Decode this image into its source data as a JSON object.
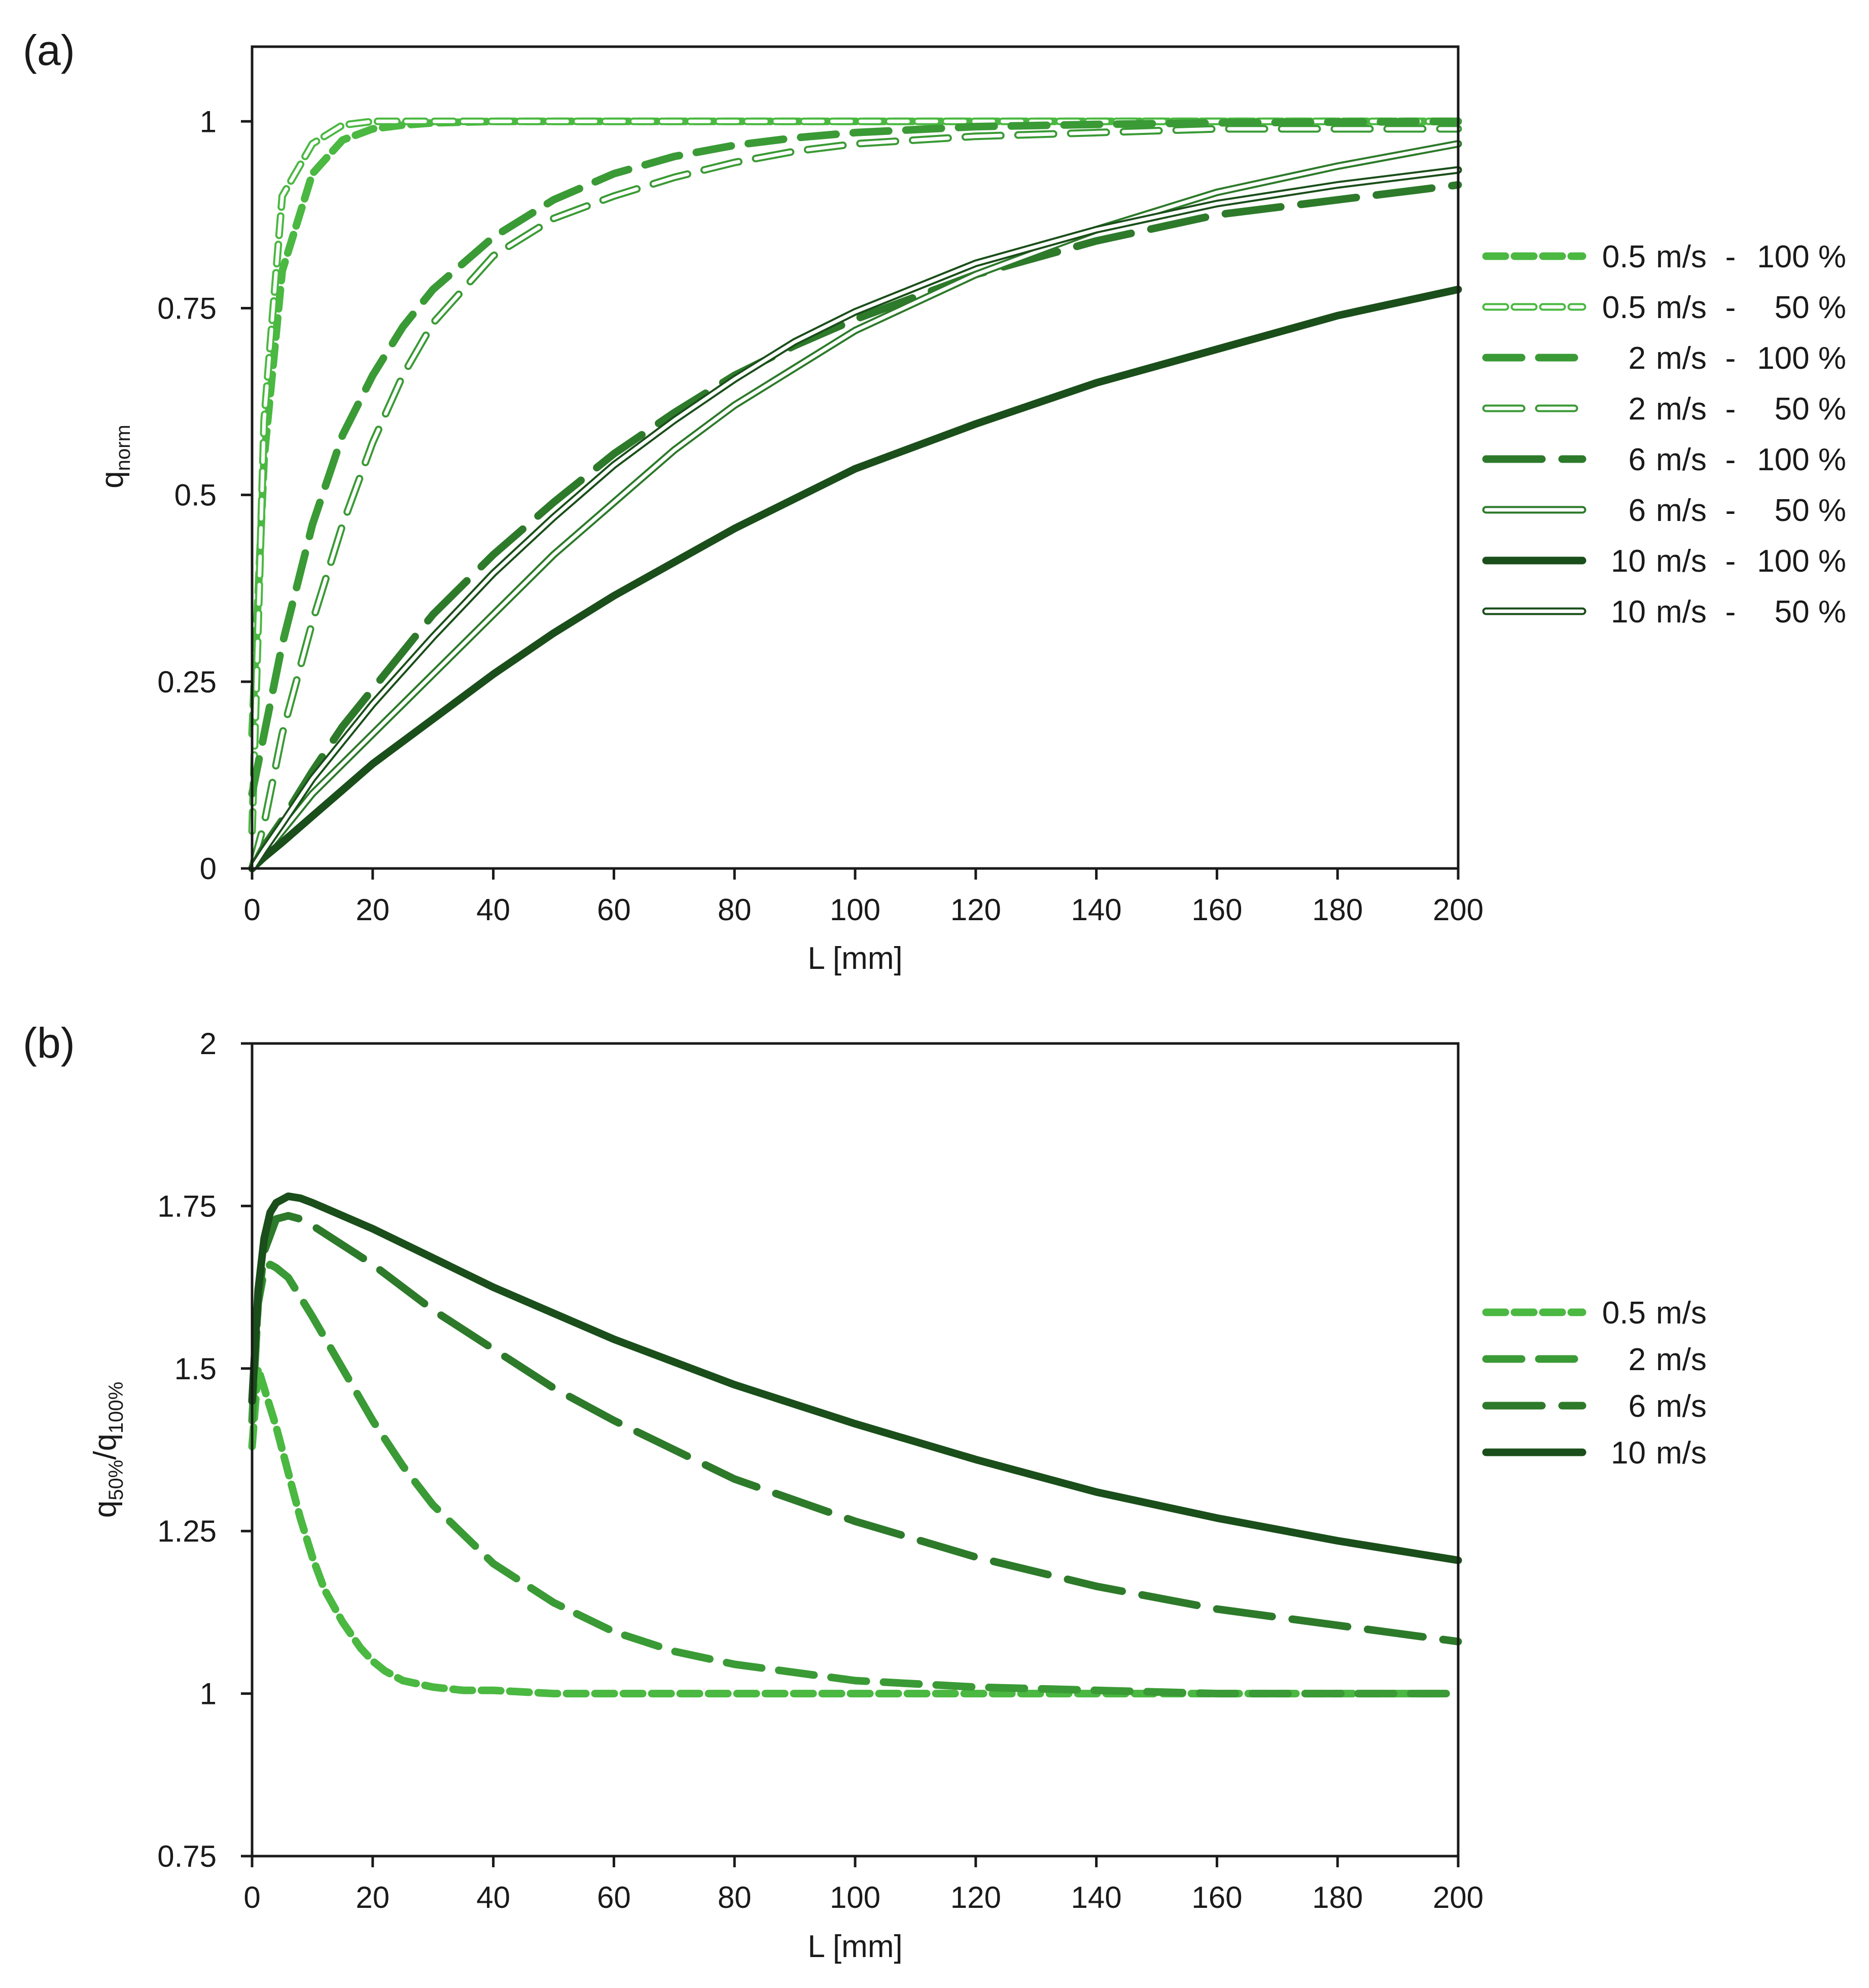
{
  "chart_data": [
    {
      "type": "line",
      "panel_label": "(a)",
      "xlabel": "L [mm]",
      "ylabel_main": "q",
      "ylabel_sub": "norm",
      "xlim": [
        0,
        200
      ],
      "ylim": [
        0,
        1.1
      ],
      "xticks": [
        0,
        20,
        40,
        60,
        80,
        100,
        120,
        140,
        160,
        180,
        200
      ],
      "yticks": [
        0,
        0.25,
        0.5,
        0.75,
        1
      ],
      "xtick_labels": [
        "0",
        "20",
        "40",
        "60",
        "80",
        "100",
        "120",
        "140",
        "160",
        "180",
        "200"
      ],
      "ytick_labels": [
        "0",
        "0.25",
        "0.5",
        "0.75",
        "1"
      ],
      "grid": false,
      "legend_position": "right",
      "x": [
        0,
        2,
        5,
        10,
        15,
        20,
        25,
        30,
        40,
        50,
        60,
        70,
        80,
        90,
        100,
        120,
        140,
        160,
        180,
        200
      ],
      "series": [
        {
          "name": "0.5 m/s - 100 %",
          "legend_speed": "0.5",
          "legend_share": "100 %",
          "color": "#4ab841",
          "style": "dash-short-solid",
          "values": [
            0.18,
            0.55,
            0.8,
            0.93,
            0.975,
            0.99,
            0.995,
            0.998,
            1.0,
            1.0,
            1.0,
            1.0,
            1.0,
            1.0,
            1.0,
            1.0,
            1.0,
            1.0,
            1.0,
            1.0
          ]
        },
        {
          "name": "0.5 m/s - 50 %",
          "legend_speed": "0.5",
          "legend_share": "50 %",
          "color": "#4ab841",
          "style": "dash-short-hollow",
          "values": [
            0.05,
            0.6,
            0.9,
            0.97,
            0.995,
            1.0,
            1.0,
            1.0,
            1.0,
            1.0,
            1.0,
            1.0,
            1.0,
            1.0,
            1.0,
            1.0,
            1.0,
            1.0,
            1.0,
            1.0
          ]
        },
        {
          "name": "2 m/s - 100 %",
          "legend_speed": "2",
          "legend_share": "100 %",
          "color": "#3a9a35",
          "style": "dash-medium-solid",
          "values": [
            0.1,
            0.18,
            0.3,
            0.46,
            0.58,
            0.66,
            0.725,
            0.775,
            0.845,
            0.895,
            0.93,
            0.953,
            0.968,
            0.978,
            0.985,
            0.993,
            0.996,
            0.998,
            0.999,
            1.0
          ]
        },
        {
          "name": "2 m/s - 50 %",
          "legend_speed": "2",
          "legend_share": "50 %",
          "color": "#3a9a35",
          "style": "dash-medium-hollow",
          "values": [
            0.0,
            0.06,
            0.18,
            0.33,
            0.46,
            0.57,
            0.66,
            0.73,
            0.82,
            0.87,
            0.9,
            0.925,
            0.945,
            0.96,
            0.97,
            0.98,
            0.985,
            0.99,
            0.99,
            0.99
          ]
        },
        {
          "name": "6 m/s - 100 %",
          "legend_speed": "6",
          "legend_share": "100 %",
          "color": "#2d7a2a",
          "style": "dash-long-solid",
          "values": [
            0.0,
            0.03,
            0.065,
            0.13,
            0.19,
            0.24,
            0.29,
            0.34,
            0.42,
            0.49,
            0.555,
            0.61,
            0.66,
            0.7,
            0.735,
            0.795,
            0.84,
            0.875,
            0.895,
            0.915
          ]
        },
        {
          "name": "6 m/s - 50 %",
          "legend_speed": "6",
          "legend_share": "50 %",
          "color": "#2d7a2a",
          "style": "solid-hollow",
          "values": [
            0.0,
            0.02,
            0.05,
            0.1,
            0.14,
            0.18,
            0.22,
            0.26,
            0.34,
            0.42,
            0.49,
            0.56,
            0.62,
            0.67,
            0.72,
            0.795,
            0.855,
            0.905,
            0.94,
            0.97
          ]
        },
        {
          "name": "10 m/s - 100 %",
          "legend_speed": "10",
          "legend_share": "100 %",
          "color": "#1a4e1a",
          "style": "solid",
          "values": [
            0.0,
            0.015,
            0.035,
            0.07,
            0.105,
            0.14,
            0.17,
            0.2,
            0.26,
            0.315,
            0.365,
            0.41,
            0.455,
            0.495,
            0.535,
            0.595,
            0.65,
            0.695,
            0.74,
            0.775
          ]
        },
        {
          "name": "10 m/s - 50 %",
          "legend_speed": "10",
          "legend_share": "50 %",
          "color": "#1a4e1a",
          "style": "solid-hollow",
          "values": [
            0.0,
            0.025,
            0.06,
            0.12,
            0.17,
            0.22,
            0.265,
            0.31,
            0.395,
            0.47,
            0.54,
            0.6,
            0.655,
            0.705,
            0.745,
            0.81,
            0.855,
            0.89,
            0.915,
            0.935
          ]
        }
      ]
    },
    {
      "type": "line",
      "panel_label": "(b)",
      "xlabel": "L [mm]",
      "ylabel_main": "q",
      "ylabel_sub1": "50%",
      "ylabel_slash": "/q",
      "ylabel_sub2": "100%",
      "xlim": [
        0,
        200
      ],
      "ylim": [
        0.75,
        2
      ],
      "xticks": [
        0,
        20,
        40,
        60,
        80,
        100,
        120,
        140,
        160,
        180,
        200
      ],
      "yticks": [
        0.75,
        1,
        1.25,
        1.5,
        1.75,
        2
      ],
      "xtick_labels": [
        "0",
        "20",
        "40",
        "60",
        "80",
        "100",
        "120",
        "140",
        "160",
        "180",
        "200"
      ],
      "ytick_labels": [
        "0.75",
        "1",
        "1.25",
        "1.5",
        "1.75",
        "2"
      ],
      "grid": false,
      "legend_position": "right",
      "series": [
        {
          "name": "0.5 m/s",
          "legend_speed": "0.5",
          "color": "#4ab841",
          "style": "dash-short-solid",
          "x": [
            0,
            1,
            2,
            4,
            6,
            8,
            10,
            12,
            15,
            18,
            20,
            22,
            25,
            30,
            35,
            40,
            50,
            60,
            80,
            100,
            120,
            140,
            160,
            180,
            198
          ],
          "values": [
            1.38,
            1.5,
            1.47,
            1.41,
            1.34,
            1.27,
            1.21,
            1.16,
            1.11,
            1.07,
            1.05,
            1.035,
            1.02,
            1.01,
            1.005,
            1.005,
            1.0,
            1.0,
            1.0,
            1.0,
            1.0,
            1.0,
            1.0,
            1.0,
            1.0
          ]
        },
        {
          "name": "2 m/s",
          "legend_speed": "2",
          "color": "#3a9a35",
          "style": "dash-medium-solid",
          "x": [
            0,
            1,
            2,
            3,
            4,
            6,
            8,
            10,
            15,
            20,
            25,
            30,
            40,
            50,
            60,
            70,
            80,
            100,
            120,
            140,
            160,
            180,
            198
          ],
          "values": [
            1.42,
            1.6,
            1.65,
            1.66,
            1.655,
            1.64,
            1.61,
            1.58,
            1.5,
            1.42,
            1.35,
            1.29,
            1.2,
            1.14,
            1.095,
            1.065,
            1.045,
            1.02,
            1.01,
            1.005,
            1.0,
            1.0,
            1.0
          ]
        },
        {
          "name": "6 m/s",
          "legend_speed": "6",
          "color": "#2d7a2a",
          "style": "dash-long-solid",
          "x": [
            0,
            1,
            2,
            4,
            6,
            8,
            10,
            15,
            20,
            30,
            40,
            50,
            60,
            80,
            100,
            120,
            140,
            160,
            180,
            200
          ],
          "values": [
            1.45,
            1.6,
            1.68,
            1.73,
            1.735,
            1.73,
            1.72,
            1.69,
            1.66,
            1.59,
            1.53,
            1.47,
            1.42,
            1.33,
            1.265,
            1.21,
            1.165,
            1.13,
            1.105,
            1.08
          ]
        },
        {
          "name": "10 m/s",
          "legend_speed": "10",
          "color": "#1a4e1a",
          "style": "solid",
          "x": [
            0,
            1,
            2,
            3,
            4,
            5,
            6,
            8,
            10,
            15,
            20,
            30,
            40,
            50,
            60,
            80,
            100,
            120,
            140,
            160,
            180,
            200
          ],
          "values": [
            1.45,
            1.62,
            1.7,
            1.74,
            1.755,
            1.76,
            1.765,
            1.762,
            1.755,
            1.735,
            1.715,
            1.67,
            1.625,
            1.585,
            1.545,
            1.475,
            1.415,
            1.36,
            1.31,
            1.27,
            1.235,
            1.205
          ]
        }
      ]
    }
  ]
}
